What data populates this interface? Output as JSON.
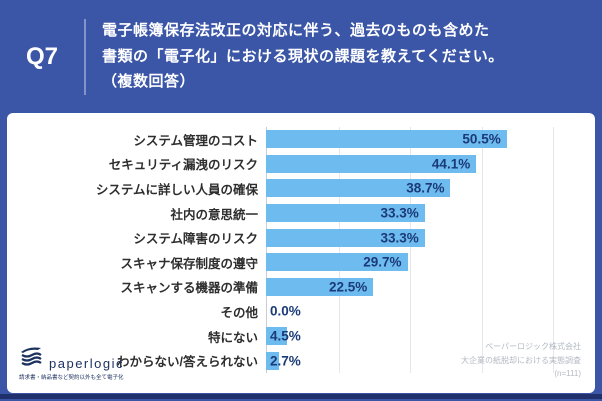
{
  "header": {
    "question_number": "Q7",
    "title_lines": [
      "電子帳簿保存法改正の対応に伴う、過去のものも含めた",
      "書類の「電子化」における現状の課題を教えてください。",
      "（複数回答）"
    ]
  },
  "chart_data": {
    "type": "bar",
    "orientation": "horizontal",
    "categories": [
      "システム管理のコスト",
      "セキュリティ漏洩のリスク",
      "システムに詳しい人員の確保",
      "社内の意思統一",
      "システム障害のリスク",
      "スキャナ保存制度の遵守",
      "スキャンする機器の準備",
      "その他",
      "特にない",
      "わからない/答えられない"
    ],
    "values": [
      50.5,
      44.1,
      38.7,
      33.3,
      33.3,
      29.7,
      22.5,
      0.0,
      4.5,
      2.7
    ],
    "value_labels": [
      "50.5%",
      "44.1%",
      "38.7%",
      "33.3%",
      "33.3%",
      "29.7%",
      "22.5%",
      "0.0%",
      "4.5%",
      "2.7%"
    ],
    "xlim": [
      0,
      60
    ],
    "gridlines_percent": [
      15,
      30,
      45,
      60
    ],
    "grid": true,
    "legend": false
  },
  "footer": {
    "logo_text": "paperlogic",
    "logo_tagline": "請求書・納品書など契約以外も全て電子化",
    "credit_lines": [
      "ペーパーロジック株式会社",
      "大企業の紙脱却における実態調査",
      "(n=111)"
    ]
  },
  "colors": {
    "background": "#3b56a7",
    "card": "#ffffff",
    "bar": "#6ebbf0",
    "value_text": "#1a3a78",
    "category_text": "#2e2e2e",
    "gridline": "#e3e6eb",
    "credit_text": "#b3bac3",
    "logo_navy": "#1c3160",
    "divider": "#8094ca"
  }
}
